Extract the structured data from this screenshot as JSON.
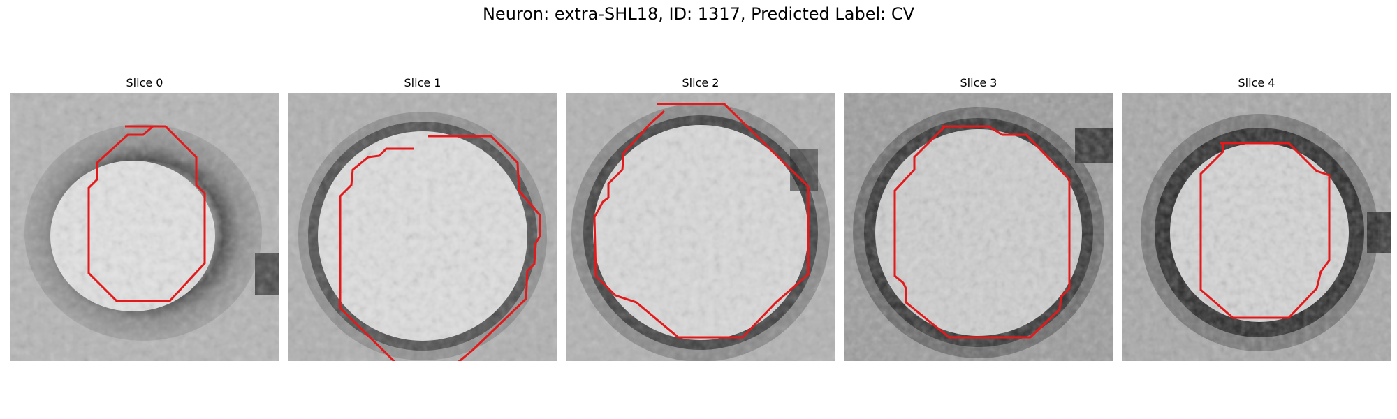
{
  "figure": {
    "title": "Neuron: extra-SHL18, ID: 1317, Predicted Label: CV"
  },
  "colors": {
    "contour": "#e31a1c",
    "background": "#ffffff"
  },
  "slices": [
    {
      "label": "Slice 0"
    },
    {
      "label": "Slice 1"
    },
    {
      "label": "Slice 2"
    },
    {
      "label": "Slice 3"
    },
    {
      "label": "Slice 4"
    }
  ]
}
